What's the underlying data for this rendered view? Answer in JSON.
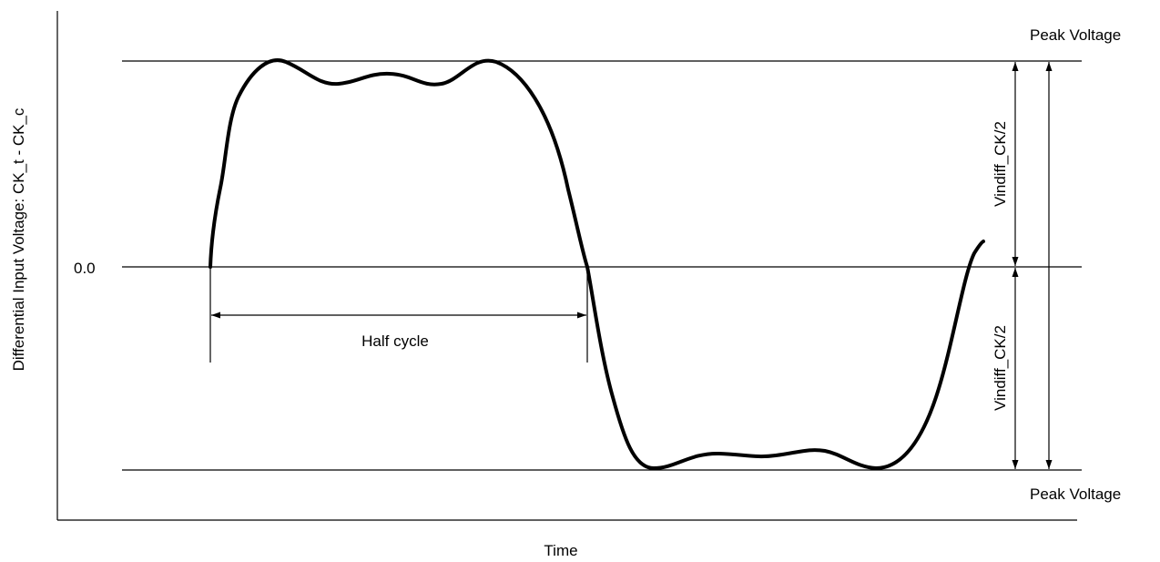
{
  "labels": {
    "y_axis": "Differential Input Voltage: CK_t - CK_c",
    "x_axis": "Time",
    "zero": "0.0",
    "peak_top": "Peak Voltage",
    "peak_bottom": "Peak Voltage",
    "half_cycle": "Half cycle",
    "vindiff_upper": "Vindiff_CK/2",
    "vindiff_lower": "Vindiff_CK/2"
  },
  "colors": {
    "line": "#000000",
    "background": "#ffffff"
  }
}
